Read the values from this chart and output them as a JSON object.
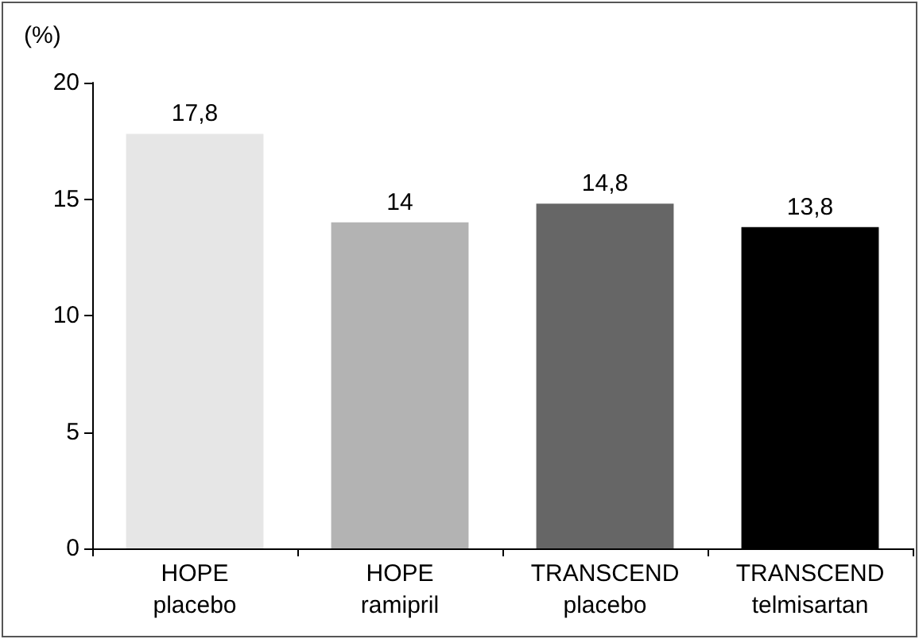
{
  "chart_data": {
    "type": "bar",
    "ylabel": "(%)",
    "categories": [
      "HOPE\nplacebo",
      "HOPE\nramipril",
      "TRANSCEND\nplacebo",
      "TRANSCEND\ntelmisartan"
    ],
    "values": [
      17.8,
      14,
      14.8,
      13.8
    ],
    "colors": [
      "#e6e6e6",
      "#b3b3b3",
      "#666666",
      "#000000"
    ],
    "value_labels": [
      "17,8",
      "14",
      "14,8",
      "13,8"
    ],
    "ylim": [
      0,
      20
    ],
    "yticks": [
      0,
      5,
      10,
      15,
      20
    ],
    "grid": false
  }
}
